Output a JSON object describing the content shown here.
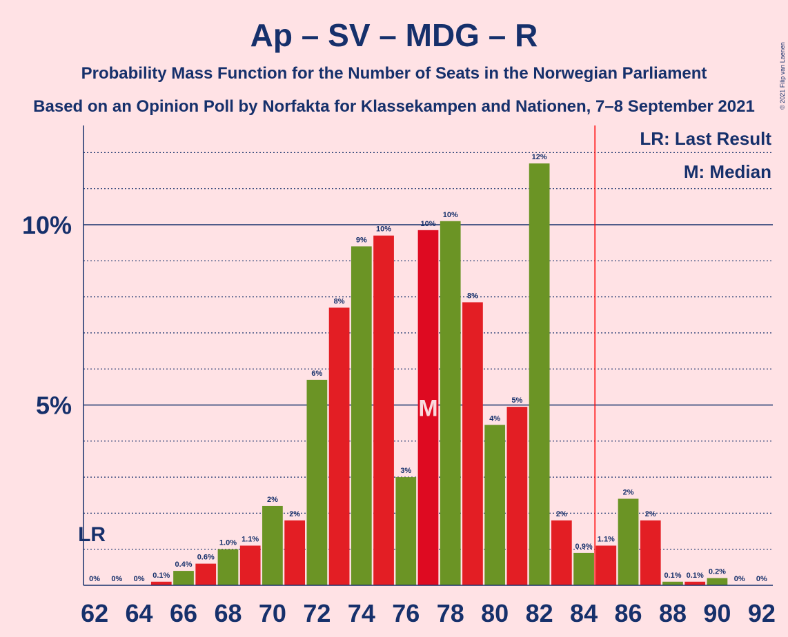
{
  "chart_data": {
    "type": "bar",
    "title": "Ap – SV – MDG – R",
    "subtitle": "Probability Mass Function for the Number of Seats in the Norwegian Parliament",
    "subtitle2": "Based on an Opinion Poll by Norfakta for Klassekampen and Nationen, 7–8 September 2021",
    "copyright": "© 2021 Filip van Laenen",
    "legend": {
      "lr": "LR: Last Result",
      "m": "M: Median"
    },
    "lr_marker": "LR",
    "median_marker": "M",
    "seats": [
      62,
      63,
      64,
      65,
      66,
      67,
      68,
      69,
      70,
      71,
      72,
      73,
      74,
      75,
      76,
      77,
      78,
      79,
      80,
      81,
      82,
      83,
      84,
      85,
      86,
      87,
      88,
      89,
      90,
      91,
      92
    ],
    "values": [
      0,
      0,
      0,
      0.1,
      0.4,
      0.6,
      1.0,
      1.1,
      2.2,
      1.8,
      5.7,
      7.7,
      9.4,
      9.7,
      3.0,
      9.85,
      10.1,
      7.85,
      4.45,
      4.95,
      11.7,
      1.8,
      0.9,
      1.1,
      2.4,
      1.8,
      0.1,
      0.1,
      0.2,
      0,
      0
    ],
    "labels": [
      "0%",
      "0%",
      "0%",
      "0.1%",
      "0.4%",
      "0.6%",
      "1.0%",
      "1.1%",
      "2%",
      "2%",
      "6%",
      "8%",
      "9%",
      "10%",
      "3%",
      "10%",
      "10%",
      "8%",
      "4%",
      "5%",
      "12%",
      "2%",
      "0.9%",
      "1.1%",
      "2%",
      "2%",
      "0.1%",
      "0.1%",
      "0.2%",
      "0%",
      "0%"
    ],
    "x_ticks": [
      "62",
      "64",
      "66",
      "68",
      "70",
      "72",
      "74",
      "76",
      "78",
      "80",
      "82",
      "84",
      "86",
      "88",
      "90",
      "92"
    ],
    "y_ticks": [
      {
        "value": 5,
        "label": "5%"
      },
      {
        "value": 10,
        "label": "10%"
      }
    ],
    "ylim": [
      0,
      12.5
    ],
    "last_result_seat": 62,
    "median_seat": 77,
    "majority_line_seat": 84.5,
    "colors": {
      "red": "#E31E24",
      "green": "#6B9425",
      "dark_red": "#DE0A21",
      "navy": "#16306B",
      "majority": "#FF0000"
    },
    "grid": true
  }
}
